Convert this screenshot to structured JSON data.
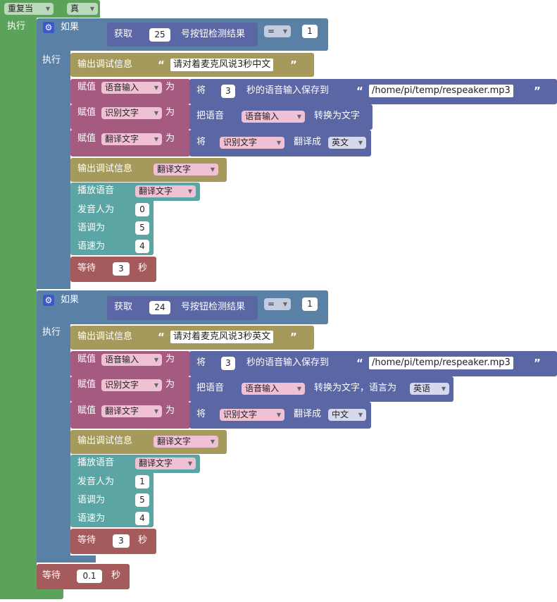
{
  "loop": {
    "label": "重复当",
    "condition": "真",
    "do": "执行"
  },
  "if_label": "如果",
  "do_label": "执行",
  "get_prefix": "获取",
  "get_suffix": "号按钮检测结果",
  "compare_op": "=",
  "debug_label": "输出调试信息",
  "assign_label": "赋值",
  "to_label": "为",
  "record_prefix": "将",
  "record_mid": "秒的语音输入保存到",
  "convert_prefix": "把语音",
  "translate_prefix": "将",
  "translate_mid": "翻译成",
  "play_label": "播放语音",
  "speaker_label": "发音人为",
  "tone_label": "语调为",
  "speed_label": "语速为",
  "wait_label": "等待",
  "sec_label": "秒",
  "var_voice": "语音输入",
  "var_recognized": "识别文字",
  "var_translated": "翻译文字",
  "blocks": [
    {
      "button": "25",
      "value": "1",
      "message": "请对着麦克风说3秒中文",
      "record_secs": "3",
      "path": "/home/pi/temp/respeaker.mp3",
      "convert_text": "转换为文字",
      "convert_lang": "",
      "target_lang": "英文",
      "speaker": "0",
      "tone": "5",
      "speed": "4",
      "wait": "3"
    },
    {
      "button": "24",
      "value": "1",
      "message": "请对着麦克风说3秒英文",
      "record_secs": "3",
      "path": "/home/pi/temp/respeaker.mp3",
      "convert_text": "转换为文字，语言为",
      "convert_lang": "英语",
      "target_lang": "中文",
      "speaker": "1",
      "tone": "5",
      "speed": "4",
      "wait": "3"
    }
  ],
  "final_wait": "0.1"
}
